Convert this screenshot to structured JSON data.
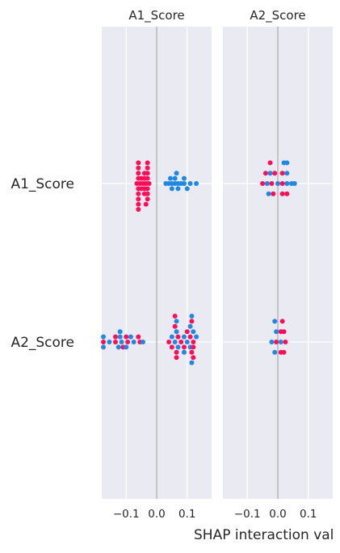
{
  "chart_data": {
    "type": "scatter",
    "xlabel": "SHAP interaction val",
    "row_labels": [
      "A1_Score",
      "A2_Score"
    ],
    "panels": [
      {
        "title": "A1_Score",
        "xlim": [
          -0.18,
          0.18
        ],
        "x_ticks": [
          -0.1,
          0.0,
          0.1
        ],
        "x_tick_labels": [
          "−0.1",
          "0.0",
          "0.1"
        ],
        "rows": [
          {
            "feature": "A1_Score",
            "points": [
              {
                "x": -0.06,
                "dy": -4,
                "c": "high"
              },
              {
                "x": -0.03,
                "dy": -4,
                "c": "high"
              },
              {
                "x": -0.06,
                "dy": -3,
                "c": "high"
              },
              {
                "x": -0.03,
                "dy": -3,
                "c": "high"
              },
              {
                "x": -0.06,
                "dy": -2,
                "c": "high"
              },
              {
                "x": -0.04,
                "dy": -2,
                "c": "high"
              },
              {
                "x": -0.03,
                "dy": -2,
                "c": "high"
              },
              {
                "x": 0.065,
                "dy": -2,
                "c": "low"
              },
              {
                "x": -0.06,
                "dy": -1,
                "c": "high"
              },
              {
                "x": -0.05,
                "dy": -1,
                "c": "high"
              },
              {
                "x": -0.04,
                "dy": -1,
                "c": "high"
              },
              {
                "x": -0.03,
                "dy": -1,
                "c": "high"
              },
              {
                "x": 0.045,
                "dy": -1,
                "c": "low"
              },
              {
                "x": 0.06,
                "dy": -1,
                "c": "low"
              },
              {
                "x": 0.09,
                "dy": -1,
                "c": "low"
              },
              {
                "x": -0.065,
                "dy": 0,
                "c": "high"
              },
              {
                "x": -0.055,
                "dy": 0,
                "c": "high"
              },
              {
                "x": -0.045,
                "dy": 0,
                "c": "high"
              },
              {
                "x": -0.035,
                "dy": 0,
                "c": "high"
              },
              {
                "x": -0.025,
                "dy": 0,
                "c": "high"
              },
              {
                "x": 0.03,
                "dy": 0,
                "c": "low"
              },
              {
                "x": 0.04,
                "dy": 0,
                "c": "low"
              },
              {
                "x": 0.05,
                "dy": 0,
                "c": "low"
              },
              {
                "x": 0.06,
                "dy": 0,
                "c": "low"
              },
              {
                "x": 0.07,
                "dy": 0,
                "c": "low"
              },
              {
                "x": 0.08,
                "dy": 0,
                "c": "low"
              },
              {
                "x": 0.09,
                "dy": 0,
                "c": "low"
              },
              {
                "x": 0.11,
                "dy": 0,
                "c": "low"
              },
              {
                "x": 0.13,
                "dy": 0,
                "c": "low"
              },
              {
                "x": -0.06,
                "dy": 1,
                "c": "high"
              },
              {
                "x": -0.05,
                "dy": 1,
                "c": "high"
              },
              {
                "x": -0.04,
                "dy": 1,
                "c": "high"
              },
              {
                "x": -0.03,
                "dy": 1,
                "c": "high"
              },
              {
                "x": 0.05,
                "dy": 1,
                "c": "low"
              },
              {
                "x": 0.07,
                "dy": 1,
                "c": "low"
              },
              {
                "x": 0.1,
                "dy": 1,
                "c": "low"
              },
              {
                "x": -0.06,
                "dy": 2,
                "c": "high"
              },
              {
                "x": -0.04,
                "dy": 2,
                "c": "high"
              },
              {
                "x": -0.03,
                "dy": 2,
                "c": "high"
              },
              {
                "x": -0.06,
                "dy": 3,
                "c": "high"
              },
              {
                "x": -0.03,
                "dy": 3,
                "c": "high"
              },
              {
                "x": -0.06,
                "dy": 4,
                "c": "high"
              },
              {
                "x": -0.035,
                "dy": 4,
                "c": "high"
              },
              {
                "x": -0.06,
                "dy": 5,
                "c": "high"
              }
            ]
          },
          {
            "feature": "A2_Score",
            "points": [
              {
                "x": 0.06,
                "dy": -5,
                "c": "high"
              },
              {
                "x": 0.115,
                "dy": -5,
                "c": "low"
              },
              {
                "x": 0.065,
                "dy": -4,
                "c": "low"
              },
              {
                "x": 0.115,
                "dy": -4,
                "c": "high"
              },
              {
                "x": 0.06,
                "dy": -3,
                "c": "high"
              },
              {
                "x": 0.11,
                "dy": -3,
                "c": "low"
              },
              {
                "x": 0.065,
                "dy": -2,
                "c": "low"
              },
              {
                "x": 0.1,
                "dy": -2,
                "c": "high"
              },
              {
                "x": 0.12,
                "dy": -2,
                "c": "low"
              },
              {
                "x": -0.12,
                "dy": -2,
                "c": "low"
              },
              {
                "x": -0.135,
                "dy": -1,
                "c": "high"
              },
              {
                "x": -0.12,
                "dy": -1,
                "c": "low"
              },
              {
                "x": -0.1,
                "dy": -1,
                "c": "high"
              },
              {
                "x": -0.085,
                "dy": -1,
                "c": "low"
              },
              {
                "x": -0.06,
                "dy": -1,
                "c": "high"
              },
              {
                "x": -0.175,
                "dy": -1,
                "c": "low"
              },
              {
                "x": 0.05,
                "dy": -1,
                "c": "low"
              },
              {
                "x": 0.07,
                "dy": -1,
                "c": "high"
              },
              {
                "x": 0.09,
                "dy": -1,
                "c": "low"
              },
              {
                "x": 0.11,
                "dy": -1,
                "c": "high"
              },
              {
                "x": 0.13,
                "dy": -1,
                "c": "low"
              },
              {
                "x": -0.175,
                "dy": 0,
                "c": "high"
              },
              {
                "x": -0.155,
                "dy": 0,
                "c": "low"
              },
              {
                "x": -0.135,
                "dy": 0,
                "c": "high"
              },
              {
                "x": -0.115,
                "dy": 0,
                "c": "low"
              },
              {
                "x": -0.095,
                "dy": 0,
                "c": "high"
              },
              {
                "x": -0.075,
                "dy": 0,
                "c": "low"
              },
              {
                "x": -0.055,
                "dy": 0,
                "c": "high"
              },
              {
                "x": -0.045,
                "dy": 0,
                "c": "low"
              },
              {
                "x": 0.04,
                "dy": 0,
                "c": "high"
              },
              {
                "x": 0.06,
                "dy": 0,
                "c": "low"
              },
              {
                "x": 0.08,
                "dy": 0,
                "c": "high"
              },
              {
                "x": 0.1,
                "dy": 0,
                "c": "low"
              },
              {
                "x": 0.12,
                "dy": 0,
                "c": "high"
              },
              {
                "x": 0.05,
                "dy": 1,
                "c": "high"
              },
              {
                "x": 0.07,
                "dy": 1,
                "c": "low"
              },
              {
                "x": 0.09,
                "dy": 1,
                "c": "high"
              },
              {
                "x": 0.11,
                "dy": 1,
                "c": "low"
              },
              {
                "x": 0.12,
                "dy": 1,
                "c": "high"
              },
              {
                "x": -0.175,
                "dy": 1,
                "c": "low"
              },
              {
                "x": -0.125,
                "dy": 1,
                "c": "low"
              },
              {
                "x": -0.11,
                "dy": 1,
                "c": "high"
              },
              {
                "x": -0.1,
                "dy": 1,
                "c": "low"
              },
              {
                "x": 0.065,
                "dy": 2,
                "c": "high"
              },
              {
                "x": 0.09,
                "dy": 2,
                "c": "low"
              },
              {
                "x": 0.115,
                "dy": 2,
                "c": "high"
              },
              {
                "x": 0.065,
                "dy": 3,
                "c": "high"
              },
              {
                "x": 0.12,
                "dy": 3,
                "c": "high"
              },
              {
                "x": 0.115,
                "dy": 4,
                "c": "low"
              }
            ]
          }
        ]
      },
      {
        "title": "A2_Score",
        "xlim": [
          -0.18,
          0.18
        ],
        "x_ticks": [
          -0.1,
          0.0,
          0.1
        ],
        "x_tick_labels": [
          "−0.1",
          "0.0",
          "0.1"
        ],
        "rows": [
          {
            "feature": "A1_Score",
            "points": [
              {
                "x": -0.025,
                "dy": -4,
                "c": "high"
              },
              {
                "x": 0.02,
                "dy": -4,
                "c": "low"
              },
              {
                "x": 0.03,
                "dy": -4,
                "c": "low"
              },
              {
                "x": -0.04,
                "dy": -2,
                "c": "high"
              },
              {
                "x": -0.025,
                "dy": -2,
                "c": "low"
              },
              {
                "x": -0.01,
                "dy": -2,
                "c": "high"
              },
              {
                "x": 0.015,
                "dy": -2,
                "c": "high"
              },
              {
                "x": 0.03,
                "dy": -2,
                "c": "low"
              },
              {
                "x": -0.05,
                "dy": 0,
                "c": "high"
              },
              {
                "x": -0.035,
                "dy": 0,
                "c": "low"
              },
              {
                "x": -0.02,
                "dy": 0,
                "c": "high"
              },
              {
                "x": 0.0,
                "dy": 0,
                "c": "low"
              },
              {
                "x": 0.015,
                "dy": 0,
                "c": "high"
              },
              {
                "x": 0.03,
                "dy": 0,
                "c": "low"
              },
              {
                "x": 0.045,
                "dy": 0,
                "c": "low"
              },
              {
                "x": 0.055,
                "dy": 0,
                "c": "low"
              },
              {
                "x": -0.03,
                "dy": 2,
                "c": "low"
              },
              {
                "x": -0.015,
                "dy": 2,
                "c": "high"
              },
              {
                "x": 0.015,
                "dy": 2,
                "c": "high"
              },
              {
                "x": 0.03,
                "dy": 2,
                "c": "high"
              }
            ]
          },
          {
            "feature": "A2_Score",
            "points": [
              {
                "x": -0.01,
                "dy": -4,
                "c": "low"
              },
              {
                "x": 0.015,
                "dy": -4,
                "c": "high"
              },
              {
                "x": -0.005,
                "dy": -2,
                "c": "low"
              },
              {
                "x": 0.01,
                "dy": -2,
                "c": "high"
              },
              {
                "x": 0.02,
                "dy": -2,
                "c": "high"
              },
              {
                "x": -0.02,
                "dy": 0,
                "c": "low"
              },
              {
                "x": -0.005,
                "dy": 0,
                "c": "high"
              },
              {
                "x": 0.01,
                "dy": 0,
                "c": "low"
              },
              {
                "x": 0.025,
                "dy": 0,
                "c": "high"
              },
              {
                "x": -0.01,
                "dy": 2,
                "c": "low"
              },
              {
                "x": 0.01,
                "dy": 2,
                "c": "high"
              },
              {
                "x": 0.02,
                "dy": 2,
                "c": "high"
              }
            ]
          }
        ]
      }
    ],
    "colors": {
      "high": "#ff0d57",
      "low": "#1e88e5",
      "panel_bg": "#eaeaf2",
      "grid": "#ffffff",
      "zero_line": "#999999",
      "text": "#262626"
    }
  }
}
